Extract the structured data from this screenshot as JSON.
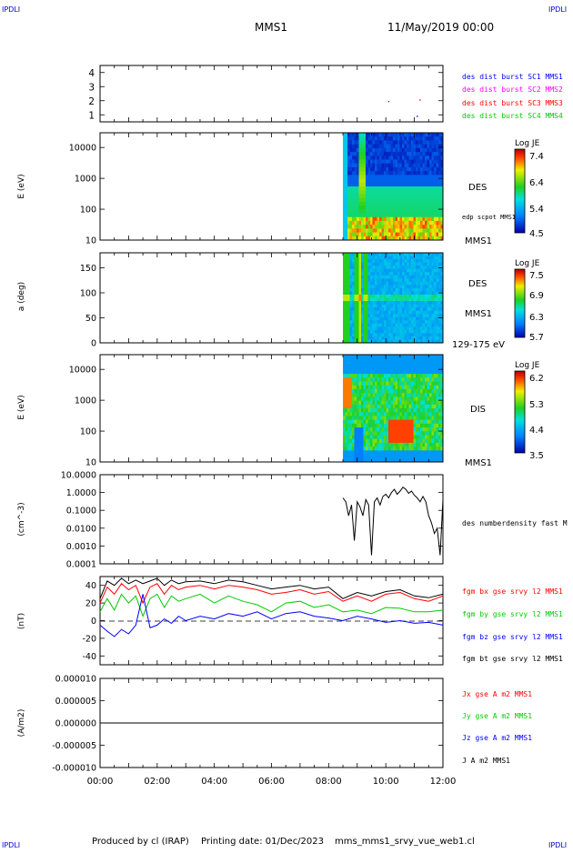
{
  "corner_labels": {
    "tl": "IPDLI",
    "tr": "IPDLI",
    "bl": "IPDLI",
    "br": "IPDLI"
  },
  "header": {
    "mission": "MMS1",
    "datetime": "11/May/2019 00:00"
  },
  "footer": {
    "producer": "Produced by cl (IRAP)",
    "printing": "Printing date: 01/Dec/2023",
    "file": "mms_mms1_srvy_vue_web1.cl"
  },
  "colors": {
    "mms1": "#0000ff",
    "mms2": "#ff00ff",
    "mms3": "#ff0000",
    "mms4": "#00cc00",
    "bx": "#ff0000",
    "by": "#00cc00",
    "bz": "#0000ff",
    "bt": "#000000",
    "corner": "#0000cc"
  },
  "time_axis": {
    "ticks": [
      "00:00",
      "02:00",
      "04:00",
      "06:00",
      "08:00",
      "10:00",
      "12:00"
    ],
    "range_hours": [
      0,
      12
    ]
  },
  "chart_data": [
    {
      "type": "scatter",
      "id": "burst",
      "yticks": [
        "4",
        "3",
        "2",
        "1"
      ],
      "ylim": [
        0.5,
        4.5
      ],
      "series": [
        {
          "name": "des dist burst SC1 MMS1",
          "color": "#0000ff",
          "x": [
            11.1
          ],
          "y": [
            0.9
          ]
        },
        {
          "name": "des dist burst SC2 MMS2",
          "color": "#ff00ff",
          "x": [],
          "y": []
        },
        {
          "name": "des dist burst SC3 MMS3",
          "color": "#ff0000",
          "x": [
            10.1,
            11.2
          ],
          "y": [
            1.95,
            2.05
          ]
        },
        {
          "name": "des dist burst SC4 MMS4",
          "color": "#00cc00",
          "x": [],
          "y": []
        }
      ]
    },
    {
      "type": "heatmap",
      "id": "des-energy",
      "ylabel": "E (eV)",
      "yscale": "log",
      "yticks": [
        "10000",
        "1000",
        "100",
        "10"
      ],
      "ylim": [
        10,
        30000
      ],
      "data_start_hour": 8.5,
      "right_label": "DES",
      "overlay_label": "edp scpot MMS1",
      "sc_label": "MMS1",
      "colorbar": {
        "title": "Log JE",
        "ticks": [
          "7.4",
          "6.4",
          "5.4",
          "4.5"
        ],
        "range": [
          4.5,
          7.4
        ]
      }
    },
    {
      "type": "heatmap",
      "id": "des-pitch",
      "ylabel": "a (deg)",
      "yticks": [
        "150",
        "100",
        "50",
        "0"
      ],
      "ylim": [
        0,
        180
      ],
      "data_start_hour": 8.5,
      "right_label": "DES",
      "sc_label": "MMS1",
      "energy_range": "129-175 eV",
      "colorbar": {
        "title": "Log JE",
        "ticks": [
          "7.5",
          "6.9",
          "6.3",
          "5.7"
        ],
        "range": [
          5.7,
          7.5
        ]
      }
    },
    {
      "type": "heatmap",
      "id": "dis-energy",
      "ylabel": "E (eV)",
      "yscale": "log",
      "yticks": [
        "10000",
        "1000",
        "100",
        "10"
      ],
      "ylim": [
        10,
        30000
      ],
      "data_start_hour": 8.5,
      "right_label": "DIS",
      "sc_label": "MMS1",
      "colorbar": {
        "title": "Log JE",
        "ticks": [
          "6.2",
          "5.3",
          "4.4",
          "3.5"
        ],
        "range": [
          3.5,
          6.2
        ]
      }
    },
    {
      "type": "line",
      "id": "density",
      "ylabel": "(cm^-3)",
      "yscale": "log",
      "yticks": [
        "10.0000",
        "1.0000",
        "0.1000",
        "0.0100",
        "0.0010",
        "0.0001"
      ],
      "ylim": [
        0.0001,
        10
      ],
      "series": [
        {
          "name": "des numberdensity fast M",
          "color": "#000000",
          "x": [
            8.5,
            8.6,
            8.7,
            8.8,
            8.9,
            9.0,
            9.1,
            9.2,
            9.3,
            9.4,
            9.5,
            9.6,
            9.7,
            9.8,
            9.9,
            10.0,
            10.1,
            10.2,
            10.3,
            10.4,
            10.5,
            10.6,
            10.7,
            10.8,
            10.9,
            11.0,
            11.1,
            11.2,
            11.3,
            11.4,
            11.5,
            11.6,
            11.7,
            11.8,
            11.9,
            12.0
          ],
          "y": [
            0.5,
            0.3,
            0.05,
            0.2,
            0.002,
            0.3,
            0.15,
            0.05,
            0.4,
            0.2,
            0.0003,
            0.3,
            0.5,
            0.2,
            0.6,
            0.8,
            0.5,
            1.0,
            1.5,
            0.8,
            1.2,
            2.0,
            1.5,
            0.9,
            1.2,
            0.7,
            0.5,
            0.3,
            0.6,
            0.3,
            0.05,
            0.02,
            0.005,
            0.01,
            0.0003,
            0.4
          ]
        }
      ]
    },
    {
      "type": "line",
      "id": "bfield",
      "ylabel": "(nT)",
      "yticks": [
        "40",
        "20",
        "0",
        "-20",
        "-40"
      ],
      "ylim": [
        -50,
        50
      ],
      "series": [
        {
          "name": "fgm bx gse srvy l2 MMS1",
          "color": "#ff0000",
          "x": [
            0,
            0.25,
            0.5,
            0.75,
            1,
            1.25,
            1.5,
            1.75,
            2,
            2.25,
            2.5,
            2.75,
            3,
            3.5,
            4,
            4.5,
            5,
            5.5,
            6,
            6.5,
            7,
            7.5,
            8,
            8.5,
            9,
            9.5,
            10,
            10.5,
            11,
            11.5,
            12
          ],
          "y": [
            20,
            38,
            30,
            42,
            35,
            40,
            20,
            38,
            42,
            30,
            40,
            35,
            38,
            40,
            36,
            40,
            38,
            35,
            30,
            32,
            35,
            30,
            33,
            22,
            28,
            22,
            30,
            32,
            25,
            22,
            28
          ]
        },
        {
          "name": "fgm by gse srvy l2 MMS1",
          "color": "#00cc00",
          "x": [
            0,
            0.25,
            0.5,
            0.75,
            1,
            1.25,
            1.5,
            1.75,
            2,
            2.25,
            2.5,
            2.75,
            3,
            3.5,
            4,
            4.5,
            5,
            5.5,
            6,
            6.5,
            7,
            7.5,
            8,
            8.5,
            9,
            9.5,
            10,
            10.5,
            11,
            11.5,
            12
          ],
          "y": [
            10,
            25,
            12,
            30,
            20,
            28,
            5,
            25,
            30,
            15,
            28,
            22,
            25,
            30,
            20,
            28,
            22,
            18,
            10,
            20,
            22,
            15,
            18,
            10,
            12,
            8,
            15,
            14,
            10,
            10,
            12
          ]
        },
        {
          "name": "fgm bz gse srvy l2 MMS1",
          "color": "#0000ff",
          "x": [
            0,
            0.25,
            0.5,
            0.75,
            1,
            1.25,
            1.5,
            1.75,
            2,
            2.25,
            2.5,
            2.75,
            3,
            3.5,
            4,
            4.5,
            5,
            5.5,
            6,
            6.5,
            7,
            7.5,
            8,
            8.5,
            9,
            9.5,
            10,
            10.5,
            11,
            11.5,
            12
          ],
          "y": [
            -5,
            -12,
            -18,
            -10,
            -15,
            -5,
            30,
            -8,
            -5,
            2,
            -3,
            5,
            0,
            5,
            2,
            8,
            5,
            10,
            2,
            8,
            10,
            5,
            3,
            0,
            5,
            2,
            -2,
            0,
            -3,
            -2,
            -5
          ]
        },
        {
          "name": "fgm bt gse srvy l2 MMS1",
          "color": "#000000",
          "x": [
            0,
            0.25,
            0.5,
            0.75,
            1,
            1.25,
            1.5,
            1.75,
            2,
            2.25,
            2.5,
            2.75,
            3,
            3.5,
            4,
            4.5,
            5,
            5.5,
            6,
            6.5,
            7,
            7.5,
            8,
            8.5,
            9,
            9.5,
            10,
            10.5,
            11,
            11.5,
            12
          ],
          "y": [
            25,
            45,
            40,
            48,
            42,
            46,
            42,
            45,
            48,
            40,
            46,
            42,
            44,
            45,
            42,
            46,
            44,
            40,
            36,
            38,
            40,
            36,
            38,
            25,
            32,
            28,
            33,
            35,
            28,
            26,
            30
          ]
        }
      ]
    },
    {
      "type": "line",
      "id": "current",
      "ylabel": "(A/m2)",
      "yticks": [
        "0.000010",
        "0.000005",
        "0.000000",
        "-0.000005",
        "-0.000010"
      ],
      "ylim": [
        -1e-05,
        1e-05
      ],
      "series": [
        {
          "name": "Jx gse A m2 MMS1",
          "color": "#ff0000",
          "x": [
            0,
            12
          ],
          "y": [
            0,
            0
          ]
        },
        {
          "name": "Jy gse A m2 MMS1",
          "color": "#00cc00",
          "x": [
            0,
            12
          ],
          "y": [
            0,
            0
          ]
        },
        {
          "name": "Jz gse A m2 MMS1",
          "color": "#0000ff",
          "x": [
            0,
            12
          ],
          "y": [
            0,
            0
          ]
        },
        {
          "name": "J A m2 MMS1",
          "color": "#000000",
          "x": [
            0,
            12
          ],
          "y": [
            0,
            0
          ]
        }
      ]
    }
  ]
}
